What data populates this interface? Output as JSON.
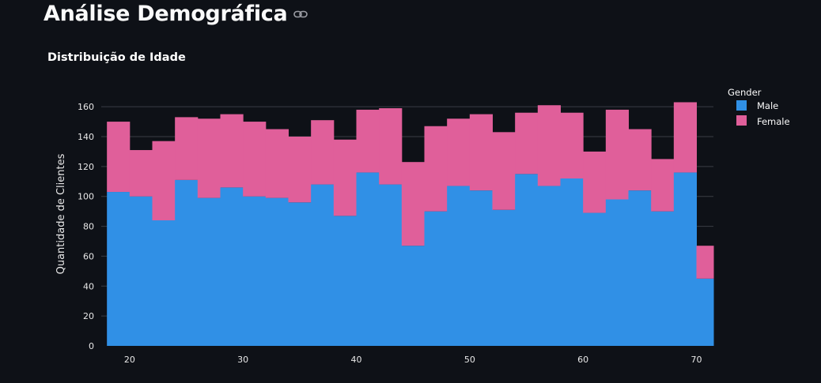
{
  "page": {
    "title": "Análise Demográfica",
    "link_icon": "link-icon"
  },
  "colors": {
    "male": "#3090e6",
    "female": "#e05f9a",
    "grid": "#3a3d45",
    "background": "#0e1117"
  },
  "chart_data": {
    "type": "bar",
    "stacked": true,
    "title": "Distribuição de Idade",
    "xlabel": "",
    "ylabel": "Quantidade de Clientes",
    "legend_title": "Gender",
    "legend_position": "top-right",
    "grid": true,
    "xlim": [
      17.5,
      71.5
    ],
    "ylim": [
      0,
      168
    ],
    "xticks": [
      20,
      30,
      40,
      50,
      60,
      70
    ],
    "yticks": [
      0,
      20,
      40,
      60,
      80,
      100,
      120,
      140,
      160
    ],
    "bin_edges": [
      18,
      20,
      22,
      24,
      26,
      28,
      30,
      32,
      34,
      36,
      38,
      40,
      42,
      44,
      46,
      48,
      50,
      52,
      54,
      56,
      58,
      60,
      62,
      64,
      66,
      68,
      70,
      72
    ],
    "series": [
      {
        "name": "Male",
        "values": [
          103,
          100,
          84,
          111,
          99,
          106,
          100,
          99,
          96,
          108,
          87,
          116,
          108,
          67,
          90,
          107,
          104,
          91,
          115,
          107,
          112,
          89,
          98,
          104,
          90,
          116,
          45
        ]
      },
      {
        "name": "Female",
        "values": [
          47,
          31,
          53,
          42,
          53,
          49,
          50,
          46,
          44,
          43,
          51,
          42,
          51,
          56,
          57,
          45,
          51,
          52,
          41,
          54,
          44,
          41,
          60,
          41,
          35,
          47,
          22
        ]
      }
    ]
  }
}
